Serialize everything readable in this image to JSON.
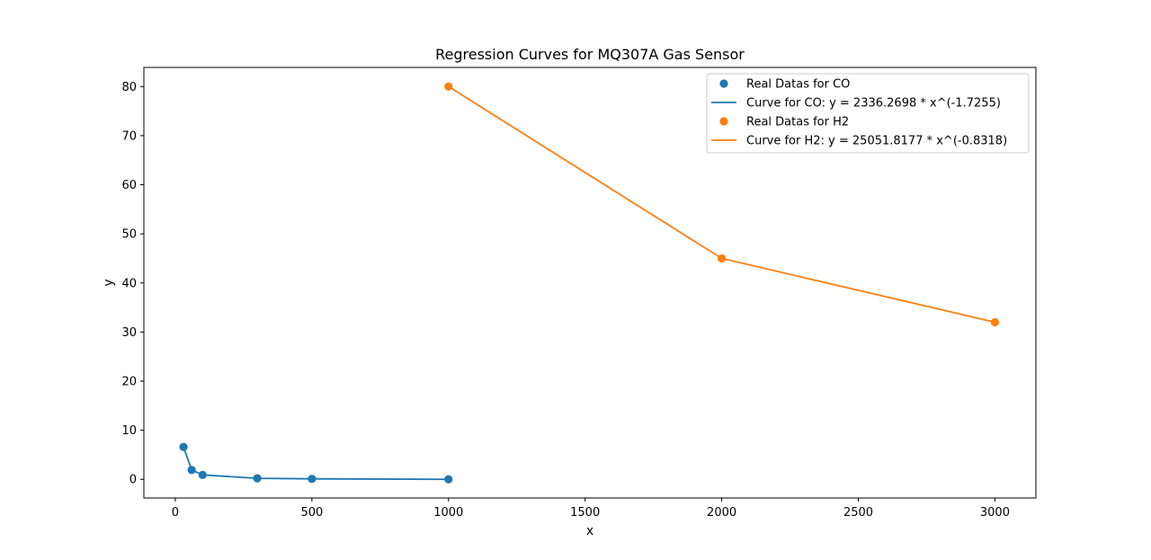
{
  "chart_data": {
    "type": "line",
    "title": "Regression Curves for MQ307A Gas Sensor",
    "xlabel": "x",
    "ylabel": "y",
    "xlim": [
      -115,
      3150
    ],
    "ylim": [
      -3.8,
      83.9
    ],
    "xticks": [
      0,
      500,
      1000,
      1500,
      2000,
      2500,
      3000
    ],
    "yticks": [
      0,
      10,
      20,
      30,
      40,
      50,
      60,
      70,
      80
    ],
    "grid": false,
    "legend_position": "top-right",
    "series": [
      {
        "kind": "scatter",
        "name": "Real Datas for CO",
        "color": "#1f77b4",
        "points": [
          [
            30,
            6.6
          ],
          [
            60,
            1.9
          ],
          [
            100,
            0.9
          ],
          [
            300,
            0.2
          ],
          [
            500,
            0.1
          ],
          [
            1000,
            0.0
          ]
        ]
      },
      {
        "kind": "line",
        "name": "Curve for CO: y = 2336.2698 * x^(-1.7255)",
        "color": "#1f77b4",
        "points": [
          [
            30,
            6.6
          ],
          [
            60,
            1.9
          ],
          [
            100,
            0.9
          ],
          [
            300,
            0.2
          ],
          [
            500,
            0.1
          ],
          [
            1000,
            0.0
          ]
        ]
      },
      {
        "kind": "scatter",
        "name": "Real Datas for H2",
        "color": "#ff7f0e",
        "points": [
          [
            1000,
            80
          ],
          [
            2000,
            45
          ],
          [
            3000,
            32
          ]
        ]
      },
      {
        "kind": "line",
        "name": "Curve for H2: y = 25051.8177 * x^(-0.8318)",
        "color": "#ff7f0e",
        "points": [
          [
            1000,
            80
          ],
          [
            2000,
            45
          ],
          [
            3000,
            32
          ]
        ]
      }
    ]
  }
}
